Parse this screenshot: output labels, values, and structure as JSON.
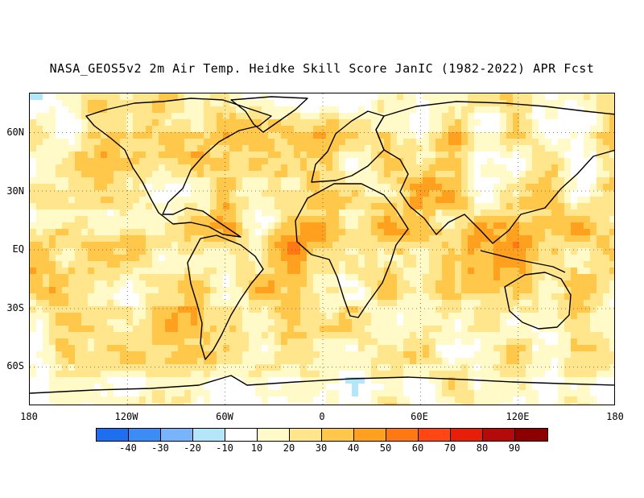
{
  "title": "NASA_GEOS5v2 2m Air Temp. Heidke Skill Score JanIC (1982-2022) APR Fcst",
  "map": {
    "projection": "cylindrical-equidistant",
    "lon_range": [
      -180,
      180
    ],
    "lat_range": [
      -80,
      80
    ],
    "grid": "dotted",
    "y_ticks": [
      "60N",
      "30N",
      "EQ",
      "30S",
      "60S"
    ],
    "x_ticks": [
      "180",
      "120W",
      "60W",
      "0",
      "60E",
      "120E",
      "180"
    ],
    "high_skill_regions": [
      "tropical Pacific",
      "tropical Indian Ocean",
      "tropical Atlantic",
      "North Pacific",
      "North Atlantic",
      "Southern Ocean"
    ]
  },
  "colorbar": {
    "labels": [
      "-40",
      "-30",
      "-20",
      "-10",
      "10",
      "20",
      "30",
      "40",
      "50",
      "60",
      "70",
      "80",
      "90"
    ],
    "colors": [
      "#1e6ef0",
      "#3c8cf5",
      "#78b4fa",
      "#b4e6fa",
      "#ffffff",
      "#fffac8",
      "#ffe68c",
      "#ffc84b",
      "#ffa01e",
      "#ff7814",
      "#ff4614",
      "#e61e0a",
      "#b40a0a",
      "#8c0000"
    ]
  }
}
